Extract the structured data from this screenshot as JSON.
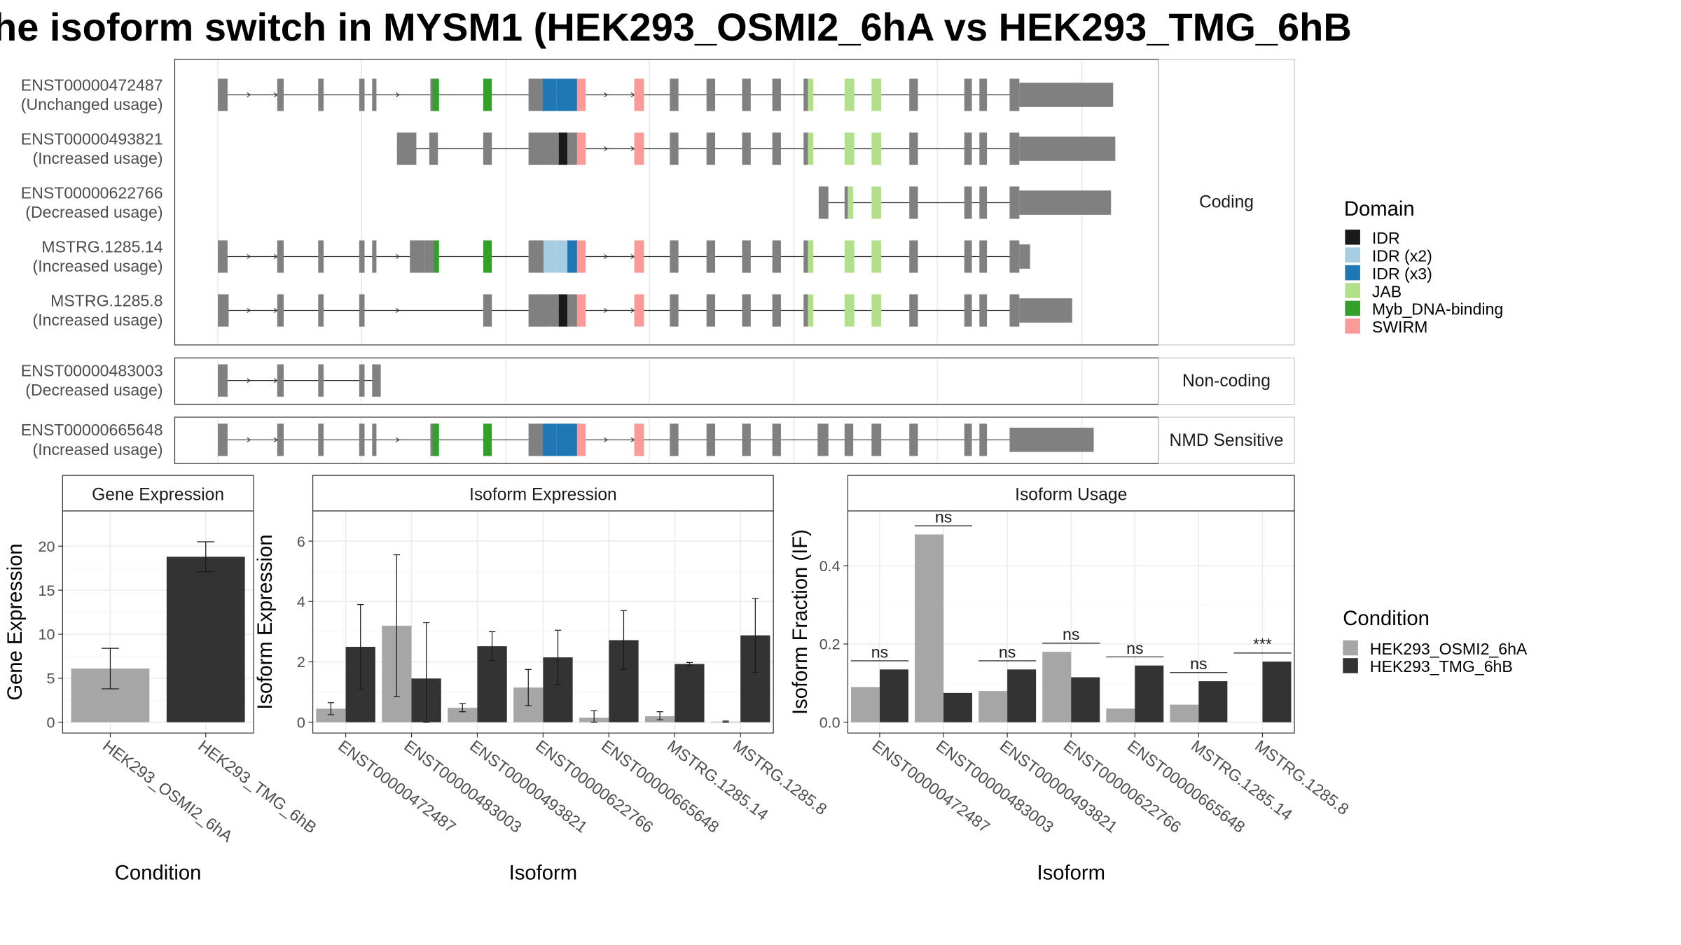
{
  "title": "he isoform switch in MYSM1 (HEK293_OSMI2_6hA vs HEK293_TMG_6hB",
  "colors": {
    "exon": "#808080",
    "condition_a": "#A6A6A6",
    "condition_b": "#333333",
    "domains": {
      "IDR": "#1A1A1A",
      "IDR (x2)": "#A6CEE3",
      "IDR (x3)": "#1F78B4",
      "JAB": "#B2DF8A",
      "Myb_DNA-binding": "#33A02C",
      "SWIRM": "#FB9A99"
    }
  },
  "structure": {
    "tracks": [
      {
        "panel": "Coding",
        "label": "ENST00000472487",
        "usage": "(Unchanged usage)"
      },
      {
        "panel": "Coding",
        "label": "ENST00000493821",
        "usage": "(Increased usage)"
      },
      {
        "panel": "Coding",
        "label": "ENST00000622766",
        "usage": "(Decreased usage)"
      },
      {
        "panel": "Coding",
        "label": "MSTRG.1285.14",
        "usage": "(Increased usage)"
      },
      {
        "panel": "Coding",
        "label": "MSTRG.1285.8",
        "usage": "(Increased usage)"
      },
      {
        "panel": "Non-coding",
        "label": "ENST00000483003",
        "usage": "(Decreased usage)"
      },
      {
        "panel": "NMD Sensitive",
        "label": "ENST00000665648",
        "usage": "(Increased usage)"
      }
    ],
    "panel_labels": [
      "Coding",
      "Non-coding",
      "NMD Sensitive"
    ]
  },
  "domain_legend": {
    "title": "Domain",
    "items": [
      "IDR",
      "IDR (x2)",
      "IDR (x3)",
      "JAB",
      "Myb_DNA-binding",
      "SWIRM"
    ]
  },
  "condition_legend": {
    "title": "Condition",
    "items": [
      "HEK293_OSMI2_6hA",
      "HEK293_TMG_6hB"
    ]
  },
  "chart_data": [
    {
      "type": "bar",
      "title": "Gene Expression",
      "xlabel": "Condition",
      "ylabel": "Gene Expression",
      "categories": [
        "HEK293_OSMI2_6hA",
        "HEK293_TMG_6hB"
      ],
      "values": [
        6.1,
        18.8
      ],
      "errors": [
        [
          3.8,
          8.4
        ],
        [
          17.1,
          20.5
        ]
      ],
      "ylim": [
        0,
        24
      ],
      "yticks": [
        0,
        5,
        10,
        15,
        20
      ]
    },
    {
      "type": "bar",
      "title": "Isoform Expression",
      "xlabel": "Isoform",
      "ylabel": "Isoform Expression",
      "categories": [
        "ENST00000472487",
        "ENST00000483003",
        "ENST00000493821",
        "ENST00000622766",
        "ENST00000665648",
        "MSTRG.1285.14",
        "MSTRG.1285.8"
      ],
      "series": [
        {
          "name": "HEK293_OSMI2_6hA",
          "values": [
            0.45,
            3.2,
            0.48,
            1.15,
            0.15,
            0.2,
            0.02
          ],
          "errors": [
            [
              0.25,
              0.65
            ],
            [
              0.85,
              5.55
            ],
            [
              0.35,
              0.62
            ],
            [
              0.55,
              1.75
            ],
            [
              0.0,
              0.38
            ],
            [
              0.08,
              0.35
            ],
            [
              0.0,
              0.04
            ]
          ]
        },
        {
          "name": "HEK293_TMG_6hB",
          "values": [
            2.5,
            1.45,
            2.52,
            2.15,
            2.72,
            1.93,
            2.88
          ],
          "errors": [
            [
              1.1,
              3.9
            ],
            [
              0.0,
              3.3
            ],
            [
              2.05,
              3.0
            ],
            [
              1.25,
              3.05
            ],
            [
              1.75,
              3.7
            ],
            [
              1.88,
              1.98
            ],
            [
              1.65,
              4.1
            ]
          ]
        }
      ],
      "ylim": [
        0,
        7
      ],
      "yticks": [
        0,
        2,
        4,
        6
      ]
    },
    {
      "type": "bar",
      "title": "Isoform Usage",
      "xlabel": "Isoform",
      "ylabel": "Isoform Fraction (IF)",
      "categories": [
        "ENST00000472487",
        "ENST00000483003",
        "ENST00000493821",
        "ENST00000622766",
        "ENST00000665648",
        "MSTRG.1285.14",
        "MSTRG.1285.8"
      ],
      "series": [
        {
          "name": "HEK293_OSMI2_6hA",
          "values": [
            0.09,
            0.48,
            0.08,
            0.18,
            0.035,
            0.045,
            0.0
          ]
        },
        {
          "name": "HEK293_TMG_6hB",
          "values": [
            0.135,
            0.075,
            0.135,
            0.115,
            0.145,
            0.105,
            0.155
          ]
        }
      ],
      "significance": [
        "ns",
        "ns",
        "ns",
        "ns",
        "ns",
        "ns",
        "***"
      ],
      "ylim": [
        0,
        0.54
      ],
      "yticks": [
        0.0,
        0.2,
        0.4
      ]
    }
  ]
}
